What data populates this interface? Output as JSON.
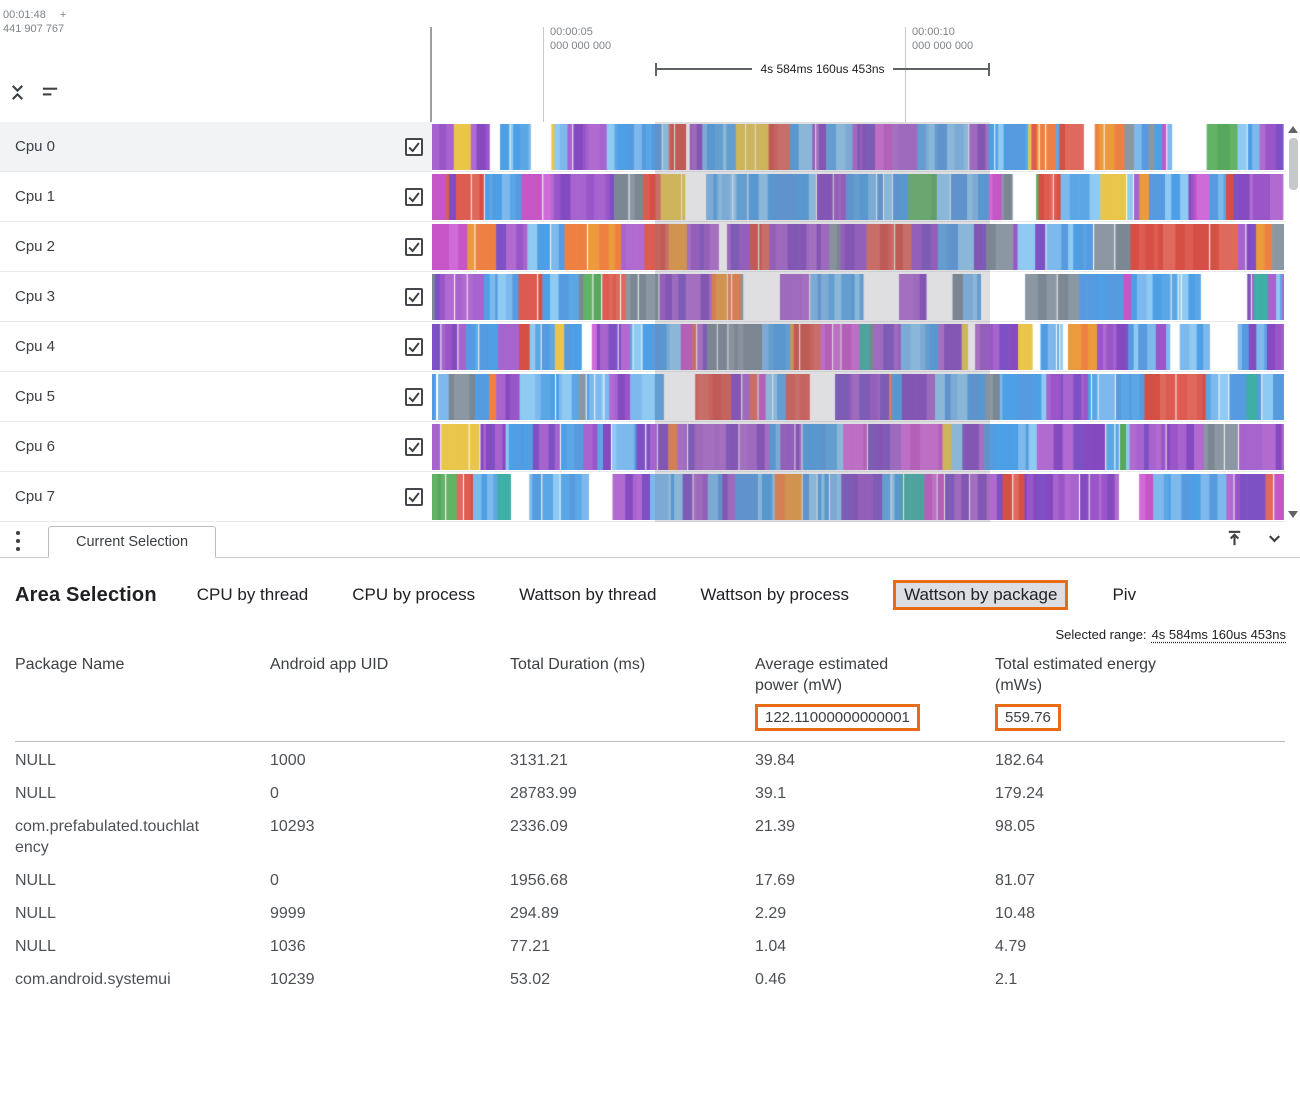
{
  "timeline": {
    "origin": {
      "time": "00:01:48",
      "plus": "+",
      "offset": "441 907 767"
    },
    "markers": [
      {
        "time": "00:00:05",
        "sub": "000 000 000"
      },
      {
        "time": "00:00:10",
        "sub": "000 000 000"
      }
    ],
    "selection_label": "4s 584ms 160us 453ns"
  },
  "tracks": [
    {
      "name": "Cpu 0",
      "checked": true,
      "highlighted": true,
      "seed": 11,
      "weights": {
        "blue": 36,
        "purple": 26,
        "magenta": 5,
        "red": 6,
        "orange": 6,
        "yellow": 3,
        "green": 2,
        "teal": 2,
        "gray": 4,
        "white": 6
      }
    },
    {
      "name": "Cpu 1",
      "checked": true,
      "highlighted": false,
      "seed": 22,
      "weights": {
        "blue": 34,
        "purple": 22,
        "magenta": 4,
        "red": 16,
        "orange": 4,
        "yellow": 2,
        "green": 2,
        "teal": 2,
        "gray": 4,
        "white": 6
      }
    },
    {
      "name": "Cpu 2",
      "checked": true,
      "highlighted": false,
      "seed": 33,
      "weights": {
        "blue": 22,
        "purple": 30,
        "magenta": 6,
        "red": 22,
        "orange": 4,
        "yellow": 2,
        "green": 1,
        "teal": 1,
        "gray": 4,
        "white": 4
      }
    },
    {
      "name": "Cpu 3",
      "checked": true,
      "highlighted": false,
      "seed": 44,
      "weights": {
        "blue": 34,
        "purple": 24,
        "magenta": 4,
        "red": 6,
        "orange": 3,
        "yellow": 2,
        "green": 2,
        "teal": 2,
        "gray": 12,
        "white": 6
      }
    },
    {
      "name": "Cpu 4",
      "checked": true,
      "highlighted": false,
      "seed": 55,
      "weights": {
        "blue": 40,
        "purple": 26,
        "magenta": 4,
        "red": 5,
        "orange": 3,
        "yellow": 2,
        "green": 2,
        "teal": 2,
        "gray": 4,
        "white": 8
      }
    },
    {
      "name": "Cpu 5",
      "checked": true,
      "highlighted": false,
      "seed": 66,
      "weights": {
        "blue": 28,
        "purple": 30,
        "magenta": 6,
        "red": 8,
        "orange": 3,
        "yellow": 3,
        "green": 1,
        "teal": 1,
        "gray": 3,
        "white": 14
      }
    },
    {
      "name": "Cpu 6",
      "checked": true,
      "highlighted": false,
      "seed": 77,
      "weights": {
        "blue": 26,
        "purple": 38,
        "magenta": 6,
        "red": 6,
        "orange": 3,
        "yellow": 2,
        "green": 2,
        "teal": 2,
        "gray": 4,
        "white": 8
      }
    },
    {
      "name": "Cpu 7",
      "checked": true,
      "highlighted": false,
      "seed": 88,
      "weights": {
        "blue": 26,
        "purple": 34,
        "magenta": 5,
        "red": 12,
        "orange": 3,
        "yellow": 2,
        "green": 1,
        "teal": 1,
        "gray": 4,
        "white": 10
      }
    }
  ],
  "track_render": {
    "groups": {
      "blue": [
        "#5ba7e6",
        "#4d9fe6",
        "#7db9ec",
        "#569ae0",
        "#8ecaf2"
      ],
      "purple": [
        "#9a55c8",
        "#8549c0",
        "#a763ce",
        "#7d51c4",
        "#b06ad0"
      ],
      "magenta": [
        "#c656c6",
        "#d06ad8"
      ],
      "red": [
        "#dd5b50",
        "#e0695e",
        "#d54f44"
      ],
      "orange": [
        "#eb9a3c",
        "#ef8043"
      ],
      "yellow": [
        "#e9c64a"
      ],
      "green": [
        "#63b366",
        "#57a85e"
      ],
      "teal": [
        "#3fafa5"
      ],
      "gray": [
        "#8b98a3",
        "#7b8894"
      ],
      "white": [
        "#ffffff"
      ]
    }
  },
  "bottom_panel": {
    "tab_label": "Current Selection",
    "title": "Area Selection",
    "view_tabs": [
      {
        "label": "CPU by thread",
        "selected": false
      },
      {
        "label": "CPU by process",
        "selected": false
      },
      {
        "label": "Wattson by thread",
        "selected": false
      },
      {
        "label": "Wattson by process",
        "selected": false
      },
      {
        "label": "Wattson by package",
        "selected": true
      },
      {
        "label": "Piv",
        "selected": false
      }
    ],
    "selected_range": {
      "label": "Selected range:",
      "value": "4s 584ms 160us 453ns"
    },
    "table": {
      "columns": [
        {
          "title": "Package Name"
        },
        {
          "title": "Android app UID"
        },
        {
          "title": "Total Duration (ms)"
        },
        {
          "title": "Average estimated power (mW)",
          "summary": "122.11000000000001"
        },
        {
          "title": "Total estimated energy (mWs)",
          "summary": "559.76"
        }
      ],
      "rows": [
        [
          "NULL",
          "1000",
          "3131.21",
          "39.84",
          "182.64"
        ],
        [
          "NULL",
          "0",
          "28783.99",
          "39.1",
          "179.24"
        ],
        [
          "com.prefabulated.touchlatency",
          "10293",
          "2336.09",
          "21.39",
          "98.05"
        ],
        [
          "NULL",
          "0",
          "1956.68",
          "17.69",
          "81.07"
        ],
        [
          "NULL",
          "9999",
          "294.89",
          "2.29",
          "10.48"
        ],
        [
          "NULL",
          "1036",
          "77.21",
          "1.04",
          "4.79"
        ],
        [
          "com.android.systemui",
          "10239",
          "53.02",
          "0.46",
          "2.1"
        ]
      ]
    }
  },
  "icons": {
    "collapse_tracks": "unfold-less",
    "sort_tracks": "sort-lines",
    "tab_menu": "kebab-vertical",
    "expand_panel": "vertical-align-top",
    "collapse_panel": "chevron-down",
    "track_checkbox": "checkbox-checked",
    "scroll_up": "triangle-up",
    "scroll_down": "triangle-down"
  },
  "colors": {
    "highlight_orange": "#ea6b16",
    "selected_tab_bg": "#dcdee1",
    "selection_overlay": "rgba(127,127,140,0.25)",
    "ruler_text": "#7e8388",
    "table_text": "#4d5156"
  }
}
